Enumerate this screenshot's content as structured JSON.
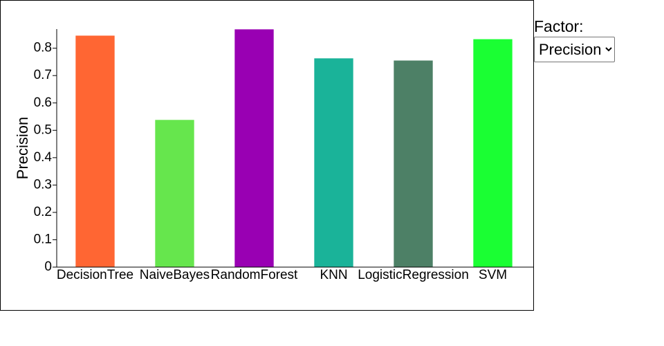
{
  "chart_data": {
    "type": "bar",
    "y_label": "Precision",
    "categories": [
      "DecisionTree",
      "NaiveBayes",
      "RandomForest",
      "KNN",
      "LogisticRegression",
      "SVM"
    ],
    "values": [
      0.846,
      0.538,
      0.869,
      0.763,
      0.755,
      0.833
    ],
    "colors": [
      "#ff6633",
      "#66e64d",
      "#9900b3",
      "#1ab399",
      "#4d8066",
      "#1aff33"
    ],
    "ylim": [
      0,
      0.87
    ],
    "yticks": [
      0,
      0.1,
      0.2,
      0.3,
      0.4,
      0.5,
      0.6,
      0.7,
      0.8
    ]
  },
  "controls": {
    "factor_label": "Factor:",
    "factor_options": [
      "Precision"
    ]
  }
}
